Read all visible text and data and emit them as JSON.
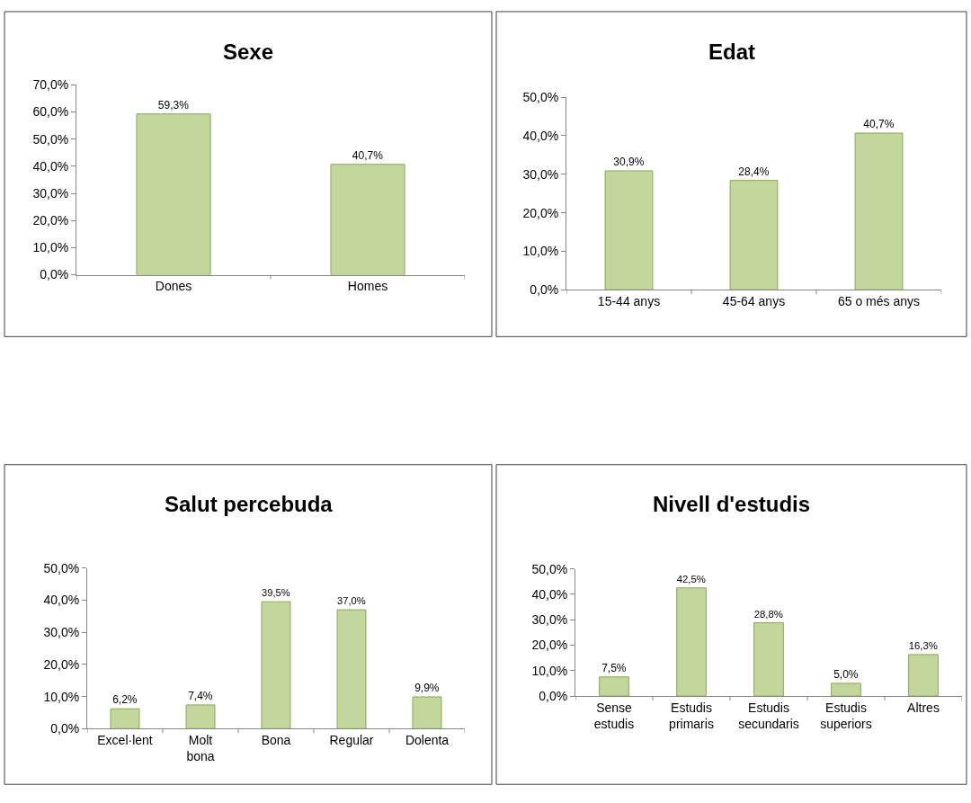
{
  "chart_data": [
    {
      "type": "bar",
      "title": "Sexe",
      "categories": [
        "Dones",
        "Homes"
      ],
      "values": [
        59.3,
        40.7
      ],
      "value_labels": [
        "59,3%",
        "40,7%"
      ],
      "color": "#c3d69b",
      "ylim": [
        0,
        70
      ],
      "yticks": [
        {
          "value": 0,
          "label": "0,0%"
        },
        {
          "value": 10,
          "label": "10,0%"
        },
        {
          "value": 20,
          "label": "20,0%"
        },
        {
          "value": 30,
          "label": "30,0%"
        },
        {
          "value": 40,
          "label": "40,0%"
        },
        {
          "value": 50,
          "label": "50,0%"
        },
        {
          "value": 60,
          "label": "60,0%"
        },
        {
          "value": 70,
          "label": "70,0%"
        }
      ]
    },
    {
      "type": "bar",
      "title": "Edat",
      "categories": [
        "15-44 anys",
        "45-64 anys",
        "65 o més anys"
      ],
      "values": [
        30.9,
        28.4,
        40.7
      ],
      "value_labels": [
        "30,9%",
        "28,4%",
        "40,7%"
      ],
      "color": "#c3d69b",
      "ylim": [
        0,
        50
      ],
      "yticks": [
        {
          "value": 0,
          "label": "0,0%"
        },
        {
          "value": 10,
          "label": "10,0%"
        },
        {
          "value": 20,
          "label": "20,0%"
        },
        {
          "value": 30,
          "label": "30,0%"
        },
        {
          "value": 40,
          "label": "40,0%"
        },
        {
          "value": 50,
          "label": "50,0%"
        }
      ]
    },
    {
      "type": "bar",
      "title": "Salut percebuda",
      "categories": [
        "Excel·lent",
        "Molt\nbona",
        "Bona",
        "Regular",
        "Dolenta"
      ],
      "values": [
        6.2,
        7.4,
        39.5,
        37.0,
        9.9
      ],
      "value_labels": [
        "6,2%",
        "7,4%",
        "39,5%",
        "37,0%",
        "9,9%"
      ],
      "color": "#c3d69b",
      "ylim": [
        0,
        50
      ],
      "yticks": [
        {
          "value": 0,
          "label": "0,0%"
        },
        {
          "value": 10,
          "label": "10,0%"
        },
        {
          "value": 20,
          "label": "20,0%"
        },
        {
          "value": 30,
          "label": "30,0%"
        },
        {
          "value": 40,
          "label": "40,0%"
        },
        {
          "value": 50,
          "label": "50,0%"
        }
      ]
    },
    {
      "type": "bar",
      "title": "Nivell d'estudis",
      "categories": [
        "Sense\nestudis",
        "Estudis\nprimaris",
        "Estudis\nsecundaris",
        "Estudis\nsuperiors",
        "Altres"
      ],
      "values": [
        7.5,
        42.5,
        28.8,
        5.0,
        16.3
      ],
      "value_labels": [
        "7,5%",
        "42,5%",
        "28,8%",
        "5,0%",
        "16,3%"
      ],
      "color": "#c3d69b",
      "ylim": [
        0,
        50
      ],
      "yticks": [
        {
          "value": 0,
          "label": "0,0%"
        },
        {
          "value": 10,
          "label": "10,0%"
        },
        {
          "value": 20,
          "label": "20,0%"
        },
        {
          "value": 30,
          "label": "30,0%"
        },
        {
          "value": 40,
          "label": "40,0%"
        },
        {
          "value": 50,
          "label": "50,0%"
        }
      ]
    }
  ]
}
